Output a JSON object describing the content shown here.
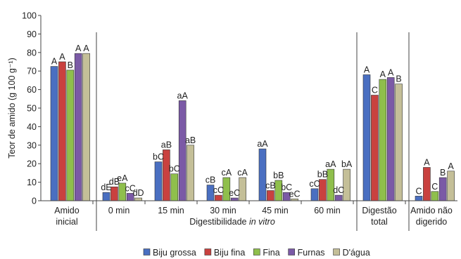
{
  "chart_data": {
    "type": "bar",
    "xlabel_prefix": "Digestibilidade ",
    "xlabel_italic": "in vitro",
    "ylabel": "Teor de amido (g 100 g⁻¹)",
    "ylim": [
      0,
      100
    ],
    "yticks": [
      0,
      10,
      20,
      30,
      40,
      50,
      60,
      70,
      80,
      90,
      100
    ],
    "grid": false,
    "legend_position": "bottom",
    "categories": [
      [
        "Amido",
        "inicial"
      ],
      [
        "0 min"
      ],
      [
        "15 min"
      ],
      [
        "30 min"
      ],
      [
        "45 min"
      ],
      [
        "60 min"
      ],
      [
        "Digestão",
        "total"
      ],
      [
        "Amido não",
        "digerido"
      ]
    ],
    "series": [
      {
        "name": "Biju grossa",
        "color": "#4a6fc1",
        "values": [
          72.5,
          4.5,
          21,
          8.5,
          28,
          6.5,
          68,
          2.5
        ],
        "labels": [
          "A",
          "dE",
          "bC",
          "cB",
          "aA",
          "cC",
          "A",
          "C"
        ]
      },
      {
        "name": "Biju fina",
        "color": "#c9413f",
        "values": [
          75,
          7.5,
          27.5,
          3,
          5.5,
          11.5,
          57,
          18
        ],
        "labels": [
          "A",
          "dB",
          "aB",
          "cC",
          "cB",
          "bB",
          "C",
          "A"
        ]
      },
      {
        "name": "Fina",
        "color": "#8fbf4c",
        "values": [
          70.5,
          9.5,
          14.5,
          12.5,
          11,
          17,
          65.5,
          5
        ],
        "labels": [
          "B",
          "eA",
          "bC",
          "cA",
          "bB",
          "aA",
          "A",
          "C"
        ]
      },
      {
        "name": "Furnas",
        "color": "#7b5aa6",
        "values": [
          79.5,
          4,
          54,
          1.5,
          4.5,
          3,
          66.5,
          12.5
        ],
        "labels": [
          "A",
          "cC",
          "aA",
          "eC",
          "bC",
          "dC",
          "A",
          "B"
        ]
      },
      {
        "name": "D'água",
        "color": "#c4bf98",
        "values": [
          79.5,
          1.5,
          30,
          12.5,
          1,
          17,
          63,
          16
        ],
        "labels": [
          "A",
          "dD",
          "aB",
          "cA",
          "eC",
          "bA",
          "B",
          "A"
        ]
      }
    ]
  }
}
